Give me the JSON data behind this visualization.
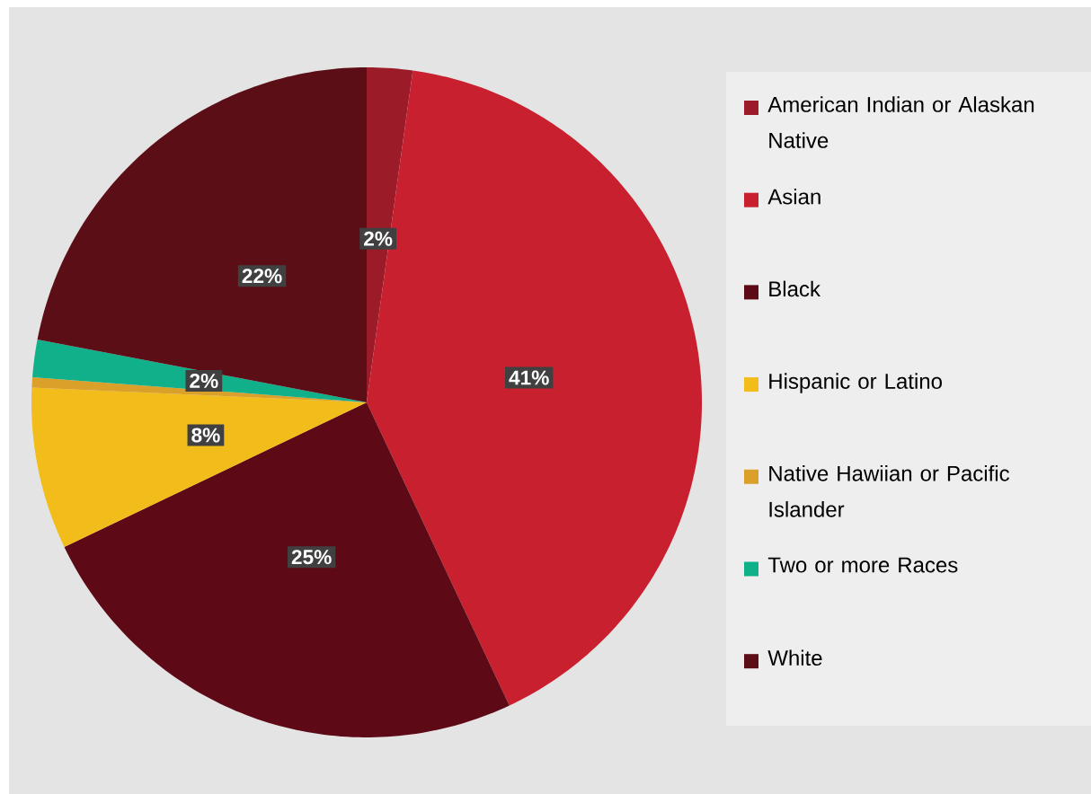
{
  "chart_data": {
    "type": "pie",
    "categories": [
      "American Indian or Alaskan Native",
      "Asian",
      "Black",
      "Hispanic or Latino",
      "Native Hawiian or Pacific Islander",
      "Two or more Races",
      "White"
    ],
    "values": [
      2.2,
      40.8,
      24.9,
      7.8,
      0.5,
      1.8,
      22.0
    ],
    "colors": [
      "#9b1c28",
      "#c8202f",
      "#5e0916",
      "#f2bd1a",
      "#dba02a",
      "#10b08a",
      "#5c0e17"
    ],
    "value_labels": [
      "2%",
      "41%",
      "25%",
      "8%",
      null,
      "2%",
      "22%"
    ],
    "legend": "right"
  }
}
